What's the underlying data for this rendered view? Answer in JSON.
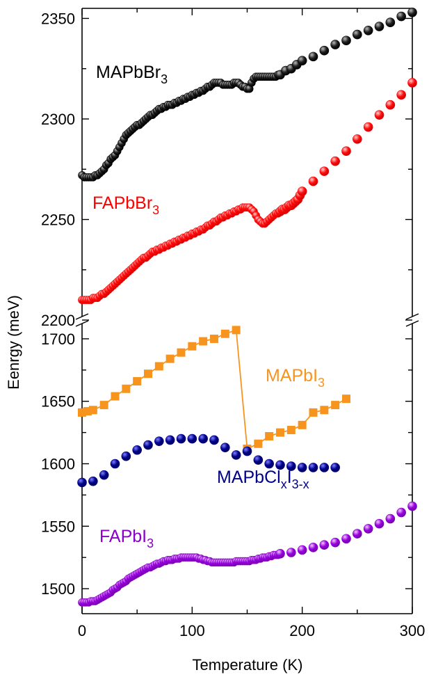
{
  "chart_data": {
    "type": "scatter",
    "xlabel": "Temperature (K)",
    "ylabel": "Eenrgy (meV)",
    "xlim": [
      0,
      300
    ],
    "x_ticks": [
      "0",
      "100",
      "200",
      "300"
    ],
    "axis_break": true,
    "panels": [
      {
        "name": "upper",
        "ylim": [
          2200,
          2355
        ],
        "y_ticks": [
          "2200",
          "2250",
          "2300",
          "2350"
        ]
      },
      {
        "name": "lower",
        "ylim": [
          1480,
          1715
        ],
        "y_ticks": [
          "1500",
          "1550",
          "1600",
          "1650",
          "1700"
        ]
      }
    ],
    "series": [
      {
        "name": "MAPbBr3",
        "label_base": "MAPbBr",
        "label_sub": "3",
        "panel": "upper",
        "color": "#000000",
        "marker": "sphere",
        "line": false,
        "x": [
          0,
          2,
          4,
          6,
          8,
          10,
          12,
          14,
          16,
          18,
          20,
          22,
          24,
          26,
          28,
          30,
          32,
          34,
          36,
          38,
          40,
          42,
          44,
          46,
          48,
          50,
          52,
          54,
          56,
          58,
          60,
          62,
          64,
          66,
          68,
          70,
          72,
          74,
          76,
          78,
          80,
          82,
          84,
          86,
          88,
          90,
          92,
          94,
          96,
          98,
          100,
          102,
          104,
          106,
          108,
          110,
          112,
          114,
          116,
          118,
          120,
          122,
          124,
          126,
          128,
          130,
          132,
          134,
          136,
          138,
          140,
          142,
          144,
          146,
          148,
          150,
          152,
          154,
          156,
          158,
          160,
          162,
          164,
          166,
          168,
          170,
          172,
          174,
          176,
          178,
          180,
          185,
          190,
          195,
          200,
          210,
          220,
          230,
          240,
          250,
          260,
          270,
          280,
          290,
          300
        ],
        "y": [
          2272,
          2271,
          2271,
          2271,
          2271,
          2271,
          2272,
          2272,
          2273,
          2274,
          2275,
          2277,
          2278,
          2280,
          2281,
          2282,
          2284,
          2286,
          2288,
          2290,
          2292,
          2293,
          2294,
          2295,
          2296,
          2297,
          2297,
          2298,
          2299,
          2300,
          2301,
          2302,
          2302,
          2303,
          2304,
          2305,
          2305,
          2306,
          2306,
          2307,
          2307,
          2307,
          2308,
          2308,
          2309,
          2309,
          2310,
          2310,
          2311,
          2311,
          2312,
          2312,
          2313,
          2313,
          2314,
          2314,
          2315,
          2316,
          2316,
          2317,
          2318,
          2318,
          2318,
          2318,
          2317,
          2317,
          2317,
          2317,
          2317,
          2318,
          2318,
          2318,
          2317,
          2316,
          2316,
          2315,
          2315,
          2318,
          2320,
          2321,
          2321,
          2321,
          2321,
          2321,
          2321,
          2321,
          2321,
          2321,
          2321,
          2322,
          2322,
          2324,
          2325,
          2327,
          2329,
          2331,
          2334,
          2337,
          2339,
          2342,
          2344,
          2346,
          2348,
          2351,
          2353
        ]
      },
      {
        "name": "FAPbBr3",
        "label_base": "FAPbBr",
        "label_sub": "3",
        "panel": "upper",
        "color": "#ff0000",
        "marker": "sphere",
        "line": false,
        "x": [
          0,
          2,
          4,
          6,
          8,
          10,
          12,
          14,
          16,
          18,
          20,
          22,
          24,
          26,
          28,
          30,
          32,
          34,
          36,
          38,
          40,
          42,
          44,
          46,
          48,
          50,
          52,
          54,
          56,
          58,
          60,
          62,
          64,
          66,
          68,
          70,
          72,
          74,
          76,
          78,
          80,
          82,
          84,
          86,
          88,
          90,
          92,
          94,
          96,
          98,
          100,
          102,
          104,
          106,
          108,
          110,
          112,
          114,
          116,
          118,
          120,
          122,
          124,
          126,
          128,
          130,
          132,
          134,
          136,
          138,
          140,
          142,
          144,
          146,
          148,
          150,
          152,
          154,
          156,
          158,
          160,
          162,
          164,
          166,
          168,
          170,
          172,
          174,
          176,
          178,
          180,
          182,
          184,
          186,
          188,
          190,
          192,
          194,
          196,
          198,
          200,
          210,
          220,
          230,
          240,
          250,
          260,
          270,
          280,
          290,
          300
        ],
        "y": [
          2210,
          2210,
          2210,
          2210,
          2210,
          2211,
          2211,
          2211,
          2212,
          2213,
          2213,
          2214,
          2215,
          2216,
          2217,
          2218,
          2219,
          2220,
          2221,
          2222,
          2223,
          2224,
          2225,
          2226,
          2227,
          2228,
          2229,
          2230,
          2231,
          2231,
          2232,
          2233,
          2234,
          2234,
          2235,
          2235,
          2236,
          2236,
          2237,
          2237,
          2238,
          2238,
          2239,
          2239,
          2240,
          2240,
          2241,
          2241,
          2242,
          2242,
          2243,
          2243,
          2244,
          2244,
          2245,
          2245,
          2246,
          2247,
          2247,
          2248,
          2249,
          2249,
          2250,
          2251,
          2251,
          2252,
          2252,
          2253,
          2253,
          2254,
          2254,
          2255,
          2255,
          2256,
          2256,
          2256,
          2256,
          2255,
          2254,
          2252,
          2250,
          2249,
          2248,
          2248,
          2249,
          2250,
          2251,
          2252,
          2253,
          2253,
          2254,
          2255,
          2255,
          2256,
          2257,
          2257,
          2258,
          2259,
          2260,
          2262,
          2264,
          2269,
          2274,
          2279,
          2284,
          2290,
          2296,
          2302,
          2307,
          2312,
          2318
        ]
      },
      {
        "name": "MAPbI3",
        "label_base": "MAPbI",
        "label_sub": "3",
        "panel": "lower",
        "color": "#f7941d",
        "marker": "square",
        "line": true,
        "x": [
          0,
          5,
          10,
          20,
          30,
          40,
          50,
          60,
          70,
          80,
          90,
          100,
          110,
          120,
          130,
          140,
          150,
          160,
          170,
          180,
          190,
          200,
          210,
          220,
          230,
          240
        ],
        "y": [
          1641,
          1642,
          1643,
          1647,
          1654,
          1660,
          1666,
          1672,
          1678,
          1684,
          1689,
          1694,
          1698,
          1700,
          1704,
          1707,
          1612,
          1616,
          1622,
          1625,
          1627,
          1631,
          1641,
          1643,
          1647,
          1652
        ]
      },
      {
        "name": "MAPbClxI3-x",
        "label_base": "MAPbCl",
        "label_sub": "x",
        "label_mid": "I",
        "label_sub2": "3-x",
        "panel": "lower",
        "color": "#00008b",
        "marker": "sphere",
        "line": false,
        "x": [
          0,
          10,
          20,
          30,
          40,
          50,
          60,
          70,
          80,
          90,
          100,
          110,
          120,
          130,
          140,
          150,
          160,
          170,
          180,
          190,
          200,
          210,
          220,
          230
        ],
        "y": [
          1585,
          1586,
          1591,
          1600,
          1606,
          1611,
          1615,
          1618,
          1619,
          1620,
          1620,
          1620,
          1619,
          1613,
          1607,
          1610,
          1603,
          1600,
          1599,
          1598,
          1597,
          1597,
          1597,
          1597
        ]
      },
      {
        "name": "FAPbI3",
        "label_base": "FAPbI",
        "label_sub": "3",
        "panel": "lower",
        "color": "#8b00c8",
        "marker": "sphere",
        "line": false,
        "x": [
          0,
          2,
          4,
          6,
          8,
          10,
          12,
          14,
          16,
          18,
          20,
          22,
          24,
          26,
          28,
          30,
          32,
          34,
          36,
          38,
          40,
          42,
          44,
          46,
          48,
          50,
          52,
          54,
          56,
          58,
          60,
          62,
          64,
          66,
          68,
          70,
          72,
          74,
          76,
          78,
          80,
          82,
          84,
          86,
          88,
          90,
          92,
          94,
          96,
          98,
          100,
          102,
          104,
          106,
          108,
          110,
          112,
          114,
          116,
          118,
          120,
          122,
          124,
          126,
          128,
          130,
          132,
          134,
          136,
          138,
          140,
          142,
          144,
          146,
          148,
          150,
          152,
          154,
          156,
          158,
          160,
          162,
          164,
          166,
          168,
          170,
          172,
          174,
          176,
          178,
          180,
          190,
          200,
          210,
          220,
          230,
          240,
          250,
          260,
          270,
          280,
          290,
          300
        ],
        "y": [
          1489,
          1489,
          1489,
          1489,
          1490,
          1490,
          1490,
          1491,
          1492,
          1493,
          1494,
          1495,
          1496,
          1497,
          1499,
          1500,
          1501,
          1503,
          1504,
          1505,
          1506,
          1508,
          1509,
          1510,
          1511,
          1512,
          1513,
          1514,
          1515,
          1516,
          1517,
          1517,
          1518,
          1519,
          1520,
          1520,
          1521,
          1522,
          1522,
          1523,
          1523,
          1523,
          1524,
          1524,
          1524,
          1525,
          1525,
          1525,
          1525,
          1525,
          1525,
          1525,
          1525,
          1524,
          1524,
          1523,
          1523,
          1522,
          1522,
          1521,
          1521,
          1521,
          1521,
          1521,
          1521,
          1521,
          1521,
          1521,
          1521,
          1521,
          1522,
          1522,
          1522,
          1522,
          1522,
          1522,
          1522,
          1523,
          1523,
          1523,
          1524,
          1524,
          1525,
          1525,
          1525,
          1526,
          1526,
          1527,
          1527,
          1527,
          1528,
          1529,
          1531,
          1533,
          1535,
          1537,
          1540,
          1544,
          1548,
          1552,
          1556,
          1561,
          1566
        ]
      }
    ]
  }
}
